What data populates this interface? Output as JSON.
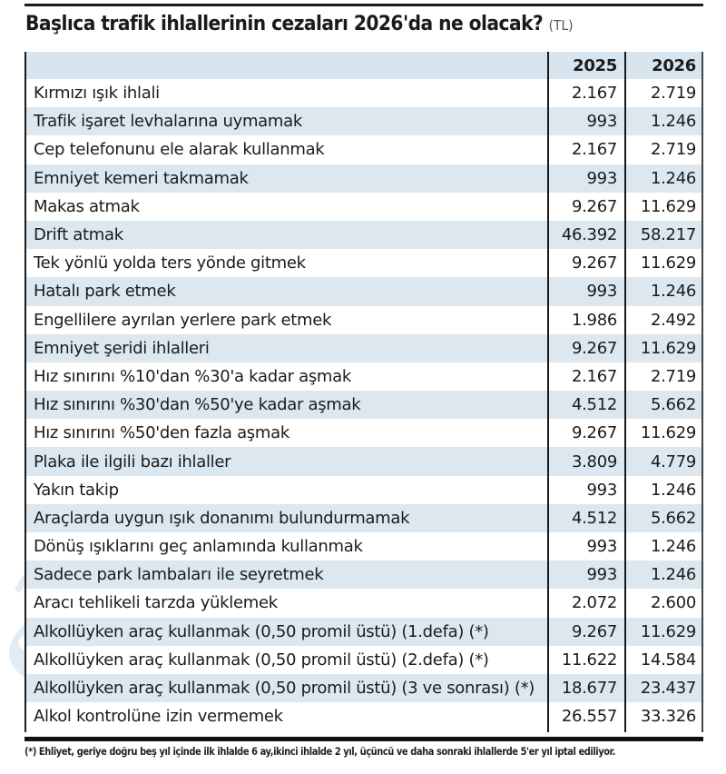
{
  "title": {
    "text": "Başlıca trafik ihlallerinin cezaları 2026'da ne olacak?",
    "unit": "(TL)"
  },
  "table": {
    "headers": [
      "",
      "2025",
      "2026"
    ],
    "rows": [
      {
        "label": "Kırmızı ışık ihlali",
        "y2025": "2.167",
        "y2026": "2.719"
      },
      {
        "label": "Trafik işaret levhalarına uymamak",
        "y2025": "993",
        "y2026": "1.246"
      },
      {
        "label": "Cep telefonunu ele alarak kullanmak",
        "y2025": "2.167",
        "y2026": "2.719"
      },
      {
        "label": "Emniyet kemeri takmamak",
        "y2025": "993",
        "y2026": "1.246"
      },
      {
        "label": "Makas atmak",
        "y2025": "9.267",
        "y2026": "11.629"
      },
      {
        "label": "Drift atmak",
        "y2025": "46.392",
        "y2026": "58.217"
      },
      {
        "label": "Tek yönlü yolda ters yönde gitmek",
        "y2025": "9.267",
        "y2026": "11.629"
      },
      {
        "label": "Hatalı park etmek",
        "y2025": "993",
        "y2026": "1.246"
      },
      {
        "label": "Engellilere ayrılan yerlere park etmek",
        "y2025": "1.986",
        "y2026": "2.492"
      },
      {
        "label": "Emniyet şeridi ihlalleri",
        "y2025": "9.267",
        "y2026": "11.629"
      },
      {
        "label": "Hız sınırını %10'dan %30'a kadar aşmak",
        "y2025": "2.167",
        "y2026": "2.719"
      },
      {
        "label": "Hız sınırını %30'dan %50'ye kadar aşmak",
        "y2025": "4.512",
        "y2026": "5.662"
      },
      {
        "label": "Hız sınırını %50'den fazla aşmak",
        "y2025": "9.267",
        "y2026": "11.629"
      },
      {
        "label": "Plaka ile ilgili bazı ihlaller",
        "y2025": "3.809",
        "y2026": "4.779"
      },
      {
        "label": "Yakın takip",
        "y2025": "993",
        "y2026": "1.246"
      },
      {
        "label": "Araçlarda uygun ışık donanımı bulundurmamak",
        "y2025": "4.512",
        "y2026": "5.662"
      },
      {
        "label": "Dönüş ışıklarını geç anlamında kullanmak",
        "y2025": "993",
        "y2026": "1.246"
      },
      {
        "label": "Sadece park lambaları ile seyretmek",
        "y2025": "993",
        "y2026": "1.246"
      },
      {
        "label": "Aracı tehlikeli tarzda yüklemek",
        "y2025": "2.072",
        "y2026": "2.600"
      },
      {
        "label": "Alkollüyken araç kullanmak (0,50 promil üstü) (1.defa) (*)",
        "y2025": "9.267",
        "y2026": "11.629"
      },
      {
        "label": "Alkollüyken araç kullanmak (0,50 promil üstü) (2.defa) (*)",
        "y2025": "11.622",
        "y2026": "14.584"
      },
      {
        "label": "Alkollüyken araç kullanmak (0,50 promil üstü) (3 ve sonrası) (*)",
        "y2025": "18.677",
        "y2026": "23.437"
      },
      {
        "label": "Alkol kontrolüne izin vermemek",
        "y2025": "26.557",
        "y2026": "33.326"
      }
    ]
  },
  "footnote": "(*) Ehliyet, geriye doğru beş yıl içinde ilk ihlalde 6 ay,ikinci ihlalde 2 yıl, üçüncü ve daha sonraki ihlallerde 5'er yıl iptal ediliyor.",
  "watermark": "ekonomi",
  "colors": {
    "stripe": "#dce7ef",
    "header": "#d9e5ee",
    "rule": "#1a1a1a",
    "watermark": "#6ea0c8"
  }
}
